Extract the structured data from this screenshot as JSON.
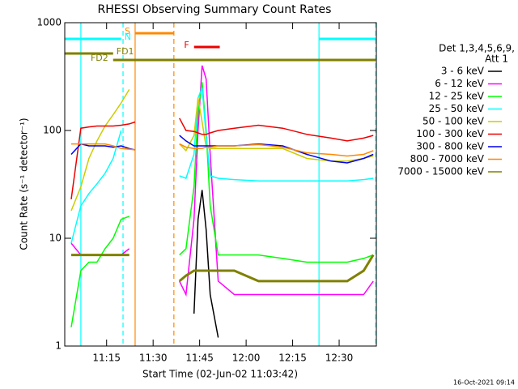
{
  "chart_data": {
    "type": "line",
    "title": "RHESSI Observing Summary Count Rates",
    "xlabel": "Start Time (02-Jun-02 11:03:42)",
    "ylabel": "Count Rate (s⁻¹ detector⁻¹)",
    "footer": "16-Oct-2021 09:14",
    "legend_header": [
      "Det 1,3,4,5,6,9,",
      "Att 1"
    ],
    "log_y": true,
    "xlim": [
      661.5,
      762
    ],
    "ylim": [
      1,
      1000
    ],
    "xticks": [
      {
        "value": 675,
        "label": "11:15"
      },
      {
        "value": 690,
        "label": "11:30"
      },
      {
        "value": 705,
        "label": "11:45"
      },
      {
        "value": 720,
        "label": "12:00"
      },
      {
        "value": 735,
        "label": "12:15"
      },
      {
        "value": 750,
        "label": "12:30"
      }
    ],
    "yticks": [
      1,
      10,
      100,
      1000
    ],
    "x": [
      663.6,
      666.7,
      669.3,
      671.9,
      674.5,
      677.1,
      679.7,
      682.3,
      684.2,
      690.1,
      698.5,
      700.6,
      703.2,
      704.5,
      705.8,
      707.1,
      708.4,
      711.0,
      716.2,
      724.0,
      731.8,
      739.6,
      747.4,
      752.6,
      757.9,
      761.0
    ],
    "series": [
      {
        "name": "3 - 6 keV",
        "color": "#000000",
        "values": [
          null,
          null,
          null,
          null,
          null,
          null,
          null,
          null,
          null,
          null,
          null,
          null,
          2,
          15,
          28,
          12,
          3,
          1.2,
          null,
          null,
          null,
          null,
          null,
          null,
          null,
          null
        ]
      },
      {
        "name": "6 - 12 keV",
        "color": "#ff00ff",
        "values": [
          9,
          7,
          7,
          7,
          7,
          7,
          7,
          8,
          null,
          null,
          4,
          3,
          15,
          100,
          400,
          300,
          60,
          4,
          3,
          3,
          3,
          3,
          3,
          3,
          3,
          4
        ]
      },
      {
        "name": "12 - 25 keV",
        "color": "#00ff00",
        "values": [
          1.5,
          5,
          6,
          6,
          8,
          10,
          15,
          16,
          null,
          null,
          7,
          8,
          30,
          150,
          280,
          100,
          20,
          7,
          7,
          7,
          6.5,
          6,
          6,
          6,
          6.5,
          7
        ]
      },
      {
        "name": "25 - 50 keV",
        "color": "#00ffff",
        "values": [
          9,
          20,
          26,
          32,
          40,
          55,
          100,
          null,
          null,
          null,
          38,
          36,
          60,
          200,
          250,
          90,
          38,
          36,
          35,
          34,
          34,
          34,
          34,
          34,
          35,
          36
        ]
      },
      {
        "name": "50 - 100 keV",
        "color": "#cccc00",
        "values": [
          18,
          30,
          55,
          80,
          110,
          140,
          180,
          240,
          null,
          null,
          75,
          65,
          90,
          200,
          120,
          70,
          68,
          68,
          68,
          68,
          68,
          55,
          52,
          52,
          55,
          58
        ]
      },
      {
        "name": "100 - 300 keV",
        "color": "#ee0000",
        "values": [
          23,
          105,
          108,
          110,
          110,
          110,
          112,
          115,
          120,
          null,
          130,
          100,
          98,
          95,
          92,
          92,
          95,
          100,
          105,
          112,
          105,
          92,
          85,
          80,
          85,
          90
        ]
      },
      {
        "name": "300 - 800 keV",
        "color": "#0000ee",
        "values": [
          60,
          75,
          72,
          72,
          72,
          70,
          72,
          68,
          66,
          null,
          90,
          80,
          72,
          72,
          72,
          72,
          72,
          72,
          72,
          75,
          72,
          60,
          52,
          50,
          55,
          60
        ]
      },
      {
        "name": "800 - 7000 keV",
        "color": "#ff8800",
        "values": [
          75,
          75,
          75,
          75,
          75,
          72,
          68,
          67,
          66,
          null,
          75,
          70,
          68,
          68,
          68,
          70,
          70,
          72,
          72,
          74,
          70,
          62,
          60,
          58,
          60,
          65
        ]
      },
      {
        "name": "7000 - 15000 keV",
        "color": "#808000",
        "values": [
          7,
          7,
          7,
          7,
          7,
          7,
          7,
          7,
          null,
          null,
          4,
          4.5,
          5,
          5,
          5,
          5,
          5,
          5,
          5,
          4,
          4,
          4,
          4,
          4,
          5,
          7
        ]
      }
    ],
    "vlines": [
      {
        "x": 666.7,
        "color": "#00ffff",
        "dashed": false
      },
      {
        "x": 680.3,
        "color": "#00ffff",
        "dashed": true
      },
      {
        "x": 684.2,
        "color": "#ff8800",
        "dashed": false
      },
      {
        "x": 696.7,
        "color": "#ff8800",
        "dashed": true
      },
      {
        "x": 743.5,
        "color": "#00ffff",
        "dashed": false
      },
      {
        "x": 761.8,
        "color": "#00ffff",
        "dashed": true
      }
    ],
    "flags": [
      {
        "label": "S",
        "color": "#ff8800",
        "intervals": [
          [
            684.2,
            696.7
          ]
        ]
      },
      {
        "label": "N",
        "color": "#00ffff",
        "intervals": [
          [
            661.5,
            679.7
          ],
          [
            743.5,
            761.8
          ]
        ]
      },
      {
        "label": "F",
        "color": "#ee0000",
        "intervals": [
          [
            703.2,
            711.5
          ]
        ]
      },
      {
        "label": "FD1",
        "color": "#808000",
        "intervals": [
          [
            661.5,
            677.1
          ]
        ]
      },
      {
        "label": "FD2",
        "color": "#808000",
        "intervals": [
          [
            677.1,
            761.8
          ]
        ]
      }
    ]
  }
}
